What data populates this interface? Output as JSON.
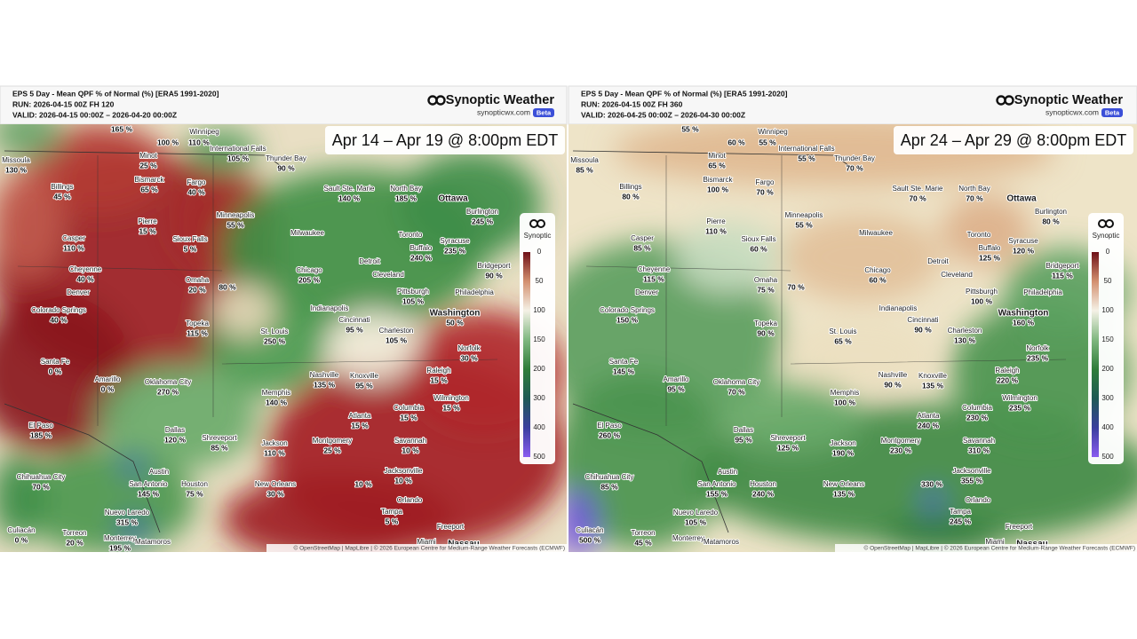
{
  "panels": [
    {
      "header": {
        "title": "EPS 5 Day - Mean QPF % of Normal (%) [ERA5 1991-2020]",
        "run": "RUN: 2026-04-15 00Z FH 120",
        "valid": "VALID: 2026-04-15 00:00Z – 2026-04-20 00:00Z"
      },
      "brand": {
        "name": "Synoptic Weather",
        "url": "synopticwx.com",
        "badge": "Beta"
      },
      "banner": "Apr 14 – Apr 19 @ 8:00pm EDT",
      "legend": {
        "title": "Synoptic",
        "ticks": [
          0,
          50,
          100,
          150,
          200,
          300,
          400,
          500
        ]
      },
      "cities": [
        {
          "name": "Winnipeg"
        },
        {
          "name": "Missoula",
          "value": "130 %"
        },
        {
          "name": "Minot",
          "value": "25 %"
        },
        {
          "name": "Bismarck",
          "value": "65 %"
        },
        {
          "name": "Billings",
          "value": "45 %"
        },
        {
          "name": "Fargo",
          "value": "40 %"
        },
        {
          "name": "International Falls",
          "value": "105 %"
        },
        {
          "name": "Thunder Bay",
          "value": "90 %"
        },
        {
          "name": "Pierre",
          "value": "15 %"
        },
        {
          "name": "Sioux Falls",
          "value": "5 %"
        },
        {
          "name": "Minneapolis",
          "value": "55 %"
        },
        {
          "name": "Sault Ste. Marie",
          "value": "140 %"
        },
        {
          "name": "North Bay",
          "value": "185 %"
        },
        {
          "name": "Ottawa"
        },
        {
          "name": "Casper",
          "value": "110 %"
        },
        {
          "name": "Cheyenne",
          "value": "40 %"
        },
        {
          "name": "Denver"
        },
        {
          "name": "Omaha",
          "value": "20 %"
        },
        {
          "name": "Colorado Springs",
          "value": "40 %"
        },
        {
          "name": "Milwaukee"
        },
        {
          "name": "Chicago",
          "value": "205 %"
        },
        {
          "name": "Detroit"
        },
        {
          "name": "Toronto"
        },
        {
          "name": "Buffalo",
          "value": "240 %"
        },
        {
          "name": "Syracuse",
          "value": "235 %"
        },
        {
          "name": "Burlington",
          "value": "245 %"
        },
        {
          "name": "Cleveland"
        },
        {
          "name": "Pittsburgh",
          "value": "105 %"
        },
        {
          "name": "Bridgeport",
          "value": "90 %"
        },
        {
          "name": "Philadelphia"
        },
        {
          "name": "Washington",
          "value": "50 %"
        },
        {
          "name": "Indianapolis"
        },
        {
          "name": "Cincinnati",
          "value": "95 %"
        },
        {
          "name": "St. Louis",
          "value": "250 %"
        },
        {
          "name": "Topeka",
          "value": "115 %"
        },
        {
          "name": "Charleston",
          "value": "105 %"
        },
        {
          "name": "Norfolk",
          "value": "30 %"
        },
        {
          "name": "Santa Fe",
          "value": "0 %"
        },
        {
          "name": "Amarillo",
          "value": "0 %"
        },
        {
          "name": "Oklahoma City",
          "value": "270 %"
        },
        {
          "name": "Nashville",
          "value": "135 %"
        },
        {
          "name": "Knoxville",
          "value": "95 %"
        },
        {
          "name": "Raleigh",
          "value": "15 %"
        },
        {
          "name": "Memphis",
          "value": "140 %"
        },
        {
          "name": "Wilmington",
          "value": "15 %"
        },
        {
          "name": "Atlanta",
          "value": "15 %"
        },
        {
          "name": "Columbia",
          "value": "15 %"
        },
        {
          "name": "El Paso",
          "value": "185 %"
        },
        {
          "name": "Dallas",
          "value": "120 %"
        },
        {
          "name": "Shreveport",
          "value": "85 %"
        },
        {
          "name": "Jackson",
          "value": "110 %"
        },
        {
          "name": "Montgomery",
          "value": "25 %"
        },
        {
          "name": "Savannah",
          "value": "10 %"
        },
        {
          "name": "Chihuahua City",
          "value": "70 %"
        },
        {
          "name": "Austin"
        },
        {
          "name": "San Antonio",
          "value": "145 %"
        },
        {
          "name": "Houston",
          "value": "75 %"
        },
        {
          "name": "New Orleans",
          "value": "30 %"
        },
        {
          "name": "Jacksonville",
          "value": "10 %"
        },
        {
          "name": "Orlando"
        },
        {
          "name": "Tampa",
          "value": "5 %"
        },
        {
          "name": "Freeport"
        },
        {
          "name": "Nuevo Laredo",
          "value": "315 %"
        },
        {
          "name": "Monterrey",
          "value": "195 %"
        },
        {
          "name": "Culiacán",
          "value": "0 %"
        },
        {
          "name": "Torreon",
          "value": "20 %"
        },
        {
          "name": "Matamoros"
        },
        {
          "name": "Miami"
        },
        {
          "name": "Nassau"
        }
      ],
      "extra_values": [
        "165 %",
        "100 %",
        "110 %",
        "80 %",
        "10 %"
      ],
      "attribution": "© OpenStreetMap | MapLibre | © 2026 European Centre for Medium-Range Weather Forecasts (ECMWF)"
    },
    {
      "header": {
        "title": "EPS 5 Day - Mean QPF % of Normal (%) [ERA5 1991-2020]",
        "run": "RUN: 2026-04-15 00Z FH 360",
        "valid": "VALID: 2026-04-25 00:00Z – 2026-04-30 00:00Z"
      },
      "brand": {
        "name": "Synoptic Weather",
        "url": "synopticwx.com",
        "badge": "Beta"
      },
      "banner": "Apr 24 – Apr 29 @ 8:00pm EDT",
      "legend": {
        "title": "Synoptic",
        "ticks": [
          0,
          50,
          100,
          150,
          200,
          300,
          400,
          500
        ]
      },
      "cities": [
        {
          "name": "Winnipeg"
        },
        {
          "name": "Missoula",
          "value": "85 %"
        },
        {
          "name": "Minot",
          "value": "65 %"
        },
        {
          "name": "Bismarck",
          "value": "100 %"
        },
        {
          "name": "Billings",
          "value": "80 %"
        },
        {
          "name": "Fargo",
          "value": "70 %"
        },
        {
          "name": "International Falls",
          "value": "55 %"
        },
        {
          "name": "Thunder Bay",
          "value": "70 %"
        },
        {
          "name": "Pierre",
          "value": "110 %"
        },
        {
          "name": "Sioux Falls",
          "value": "60 %"
        },
        {
          "name": "Minneapolis",
          "value": "55 %"
        },
        {
          "name": "Sault Ste. Marie",
          "value": "70 %"
        },
        {
          "name": "North Bay",
          "value": "70 %"
        },
        {
          "name": "Ottawa"
        },
        {
          "name": "Casper",
          "value": "85 %"
        },
        {
          "name": "Cheyenne",
          "value": "115 %"
        },
        {
          "name": "Denver"
        },
        {
          "name": "Omaha",
          "value": "75 %"
        },
        {
          "name": "Colorado Springs",
          "value": "150 %"
        },
        {
          "name": "Milwaukee"
        },
        {
          "name": "Chicago",
          "value": "60 %"
        },
        {
          "name": "Detroit"
        },
        {
          "name": "Toronto"
        },
        {
          "name": "Buffalo",
          "value": "125 %"
        },
        {
          "name": "Syracuse",
          "value": "120 %"
        },
        {
          "name": "Burlington",
          "value": "80 %"
        },
        {
          "name": "Cleveland"
        },
        {
          "name": "Pittsburgh",
          "value": "100 %"
        },
        {
          "name": "Bridgeport",
          "value": "115 %"
        },
        {
          "name": "Philadelphia"
        },
        {
          "name": "Washington",
          "value": "160 %"
        },
        {
          "name": "Indianapolis"
        },
        {
          "name": "Cincinnati",
          "value": "90 %"
        },
        {
          "name": "St. Louis",
          "value": "65 %"
        },
        {
          "name": "Topeka",
          "value": "90 %"
        },
        {
          "name": "Charleston",
          "value": "130 %"
        },
        {
          "name": "Norfolk",
          "value": "235 %"
        },
        {
          "name": "Santa Fe",
          "value": "145 %"
        },
        {
          "name": "Amarillo",
          "value": "95 %"
        },
        {
          "name": "Oklahoma City",
          "value": "70 %"
        },
        {
          "name": "Nashville",
          "value": "90 %"
        },
        {
          "name": "Knoxville",
          "value": "135 %"
        },
        {
          "name": "Raleigh",
          "value": "220 %"
        },
        {
          "name": "Memphis",
          "value": "100 %"
        },
        {
          "name": "Wilmington",
          "value": "235 %"
        },
        {
          "name": "Atlanta",
          "value": "240 %"
        },
        {
          "name": "Columbia",
          "value": "230 %"
        },
        {
          "name": "El Paso",
          "value": "260 %"
        },
        {
          "name": "Dallas",
          "value": "95 %"
        },
        {
          "name": "Shreveport",
          "value": "125 %"
        },
        {
          "name": "Jackson",
          "value": "190 %"
        },
        {
          "name": "Montgomery",
          "value": "230 %"
        },
        {
          "name": "Savannah",
          "value": "310 %"
        },
        {
          "name": "Chihuahua City",
          "value": "85 %"
        },
        {
          "name": "Austin"
        },
        {
          "name": "San Antonio",
          "value": "155 %"
        },
        {
          "name": "Houston",
          "value": "240 %"
        },
        {
          "name": "New Orleans",
          "value": "135 %"
        },
        {
          "name": "Jacksonville",
          "value": "355 %"
        },
        {
          "name": "Orlando"
        },
        {
          "name": "Tampa",
          "value": "245 %"
        },
        {
          "name": "Freeport"
        },
        {
          "name": "Nuevo Laredo",
          "value": "105 %"
        },
        {
          "name": "Monterrey"
        },
        {
          "name": "Culiacán",
          "value": "500 %"
        },
        {
          "name": "Torreon",
          "value": "45 %"
        },
        {
          "name": "Matamoros"
        },
        {
          "name": "Miami"
        },
        {
          "name": "Nassau"
        }
      ],
      "extra_values": [
        "55 %",
        "60 %",
        "55 %",
        "70 %",
        "330 %"
      ],
      "attribution": "© OpenStreetMap | MapLibre | © 2026 European Centre for Medium-Range Weather Forecasts (ECMWF)"
    }
  ]
}
